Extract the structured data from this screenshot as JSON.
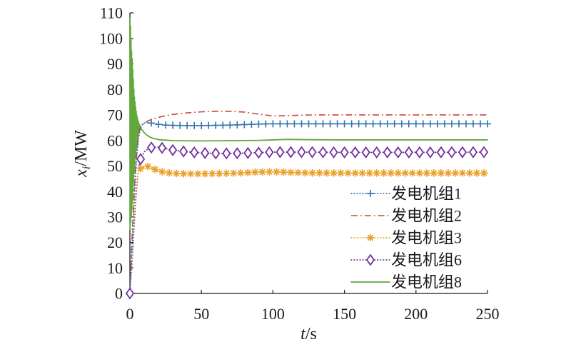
{
  "chart_data": {
    "type": "line",
    "xlabel": "t/s",
    "ylabel": "xi/MW",
    "xlim": [
      0,
      250
    ],
    "ylim": [
      0,
      110
    ],
    "xticks": [
      0,
      50,
      100,
      150,
      200,
      250
    ],
    "yticks": [
      0,
      10,
      20,
      30,
      40,
      50,
      60,
      70,
      80,
      90,
      100,
      110
    ],
    "grid": false,
    "legend": "lower-right",
    "series": [
      {
        "name": "发电机组1",
        "color": "#3671b0",
        "line": "dotted",
        "marker": "plus",
        "x": [
          0,
          1,
          2,
          3,
          4,
          5,
          6,
          7,
          8,
          10,
          12,
          15,
          20,
          25,
          30,
          40,
          50,
          60,
          70,
          80,
          90,
          100,
          110,
          120,
          150,
          200,
          250
        ],
        "y": [
          0,
          12,
          25,
          37,
          47,
          55,
          60.5,
          64,
          65.8,
          66.8,
          67,
          66.8,
          66.3,
          66,
          65.9,
          65.8,
          65.8,
          65.9,
          66,
          66.2,
          66.4,
          66.5,
          66.5,
          66.5,
          66.5,
          66.5,
          66.5
        ]
      },
      {
        "name": "发电机组2",
        "color": "#c8483a",
        "line": "dashdot",
        "marker": "none",
        "x": [
          0,
          1,
          2,
          3,
          4,
          5,
          6,
          7,
          8,
          10,
          12,
          15,
          20,
          25,
          30,
          40,
          50,
          60,
          70,
          80,
          90,
          100,
          110,
          120,
          130,
          150,
          200,
          250
        ],
        "y": [
          0,
          14,
          28,
          40,
          50,
          57,
          61.5,
          64.5,
          65.8,
          66.8,
          67.5,
          68.2,
          69,
          69.7,
          70.2,
          70.8,
          71.2,
          71.4,
          71.4,
          71.1,
          70.3,
          69.6,
          69.7,
          69.9,
          70,
          70,
          70,
          70
        ]
      },
      {
        "name": "发电机组3",
        "color": "#eba12c",
        "line": "dotted",
        "marker": "star",
        "x": [
          0,
          1,
          2,
          3,
          4,
          5,
          6,
          7,
          8,
          10,
          13,
          16,
          20,
          25,
          30,
          40,
          50,
          60,
          70,
          80,
          90,
          100,
          110,
          120,
          150,
          200,
          250
        ],
        "y": [
          0,
          10,
          21,
          31,
          39,
          44.5,
          47.5,
          48.7,
          49.2,
          49.6,
          49.8,
          49,
          48,
          47.4,
          47.1,
          46.9,
          46.9,
          47,
          47.1,
          47.3,
          47.6,
          47.7,
          47.5,
          47.3,
          47.2,
          47.2,
          47.2
        ]
      },
      {
        "name": "发电机组6",
        "color": "#7030a0",
        "line": "dotted",
        "marker": "diamond",
        "x": [
          0,
          1,
          2,
          3,
          4,
          5,
          6,
          7,
          8,
          10,
          13,
          16,
          20,
          25,
          30,
          40,
          50,
          60,
          70,
          80,
          90,
          100,
          120,
          150,
          200,
          250
        ],
        "y": [
          0,
          8,
          17,
          27,
          36,
          43,
          48.5,
          51.8,
          53.5,
          55.5,
          56.8,
          57.4,
          57.3,
          56.8,
          56.2,
          55.5,
          55.1,
          54.9,
          54.9,
          55,
          55.2,
          55.4,
          55.4,
          55.3,
          55.3,
          55.4
        ]
      },
      {
        "name": "发电机组8",
        "color": "#62a83a",
        "line": "solid",
        "marker": "none",
        "x": [
          0,
          0.2,
          0.4,
          0.6,
          0.8,
          1,
          1.2,
          1.4,
          1.6,
          1.8,
          2,
          2.2,
          2.4,
          2.6,
          2.8,
          3,
          3.2,
          3.4,
          3.6,
          3.8,
          4,
          4.2,
          4.4,
          4.6,
          4.8,
          5,
          5.2,
          5.4,
          5.6,
          5.8,
          6,
          6.2,
          6.4,
          6.6,
          6.8,
          7,
          8,
          10,
          12,
          15,
          20,
          30,
          50,
          70,
          90,
          100,
          110,
          120,
          150,
          200,
          250
        ],
        "y": [
          108,
          25,
          105,
          28,
          100,
          30,
          95,
          33,
          92,
          36,
          88,
          40,
          84,
          44,
          80,
          47,
          77,
          50,
          75,
          53,
          73,
          55,
          71.5,
          57,
          70,
          59,
          69,
          60.5,
          68,
          62,
          67.2,
          63,
          66.6,
          64,
          66,
          65.5,
          64.5,
          63,
          62,
          61,
          60.3,
          59.9,
          59.8,
          59.9,
          60,
          60.2,
          60.4,
          60.3,
          60.2,
          60.2,
          60.2
        ]
      }
    ]
  }
}
